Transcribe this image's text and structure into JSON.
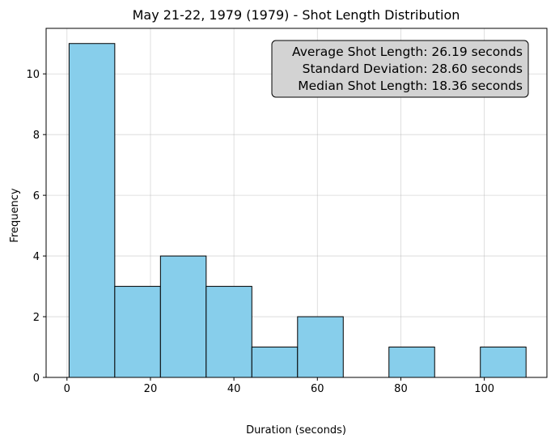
{
  "chart_data": {
    "type": "bar",
    "title": "May 21-22, 1979 (1979) - Shot Length Distribution",
    "xlabel": "Duration (seconds)",
    "ylabel": "Frequency",
    "bins": [
      {
        "start": 0.5,
        "end": 11.45,
        "count": 11
      },
      {
        "start": 11.45,
        "end": 22.4,
        "count": 3
      },
      {
        "start": 22.4,
        "end": 33.35,
        "count": 4
      },
      {
        "start": 33.35,
        "end": 44.3,
        "count": 3
      },
      {
        "start": 44.3,
        "end": 55.25,
        "count": 1
      },
      {
        "start": 55.25,
        "end": 66.2,
        "count": 2
      },
      {
        "start": 66.2,
        "end": 77.15,
        "count": 0
      },
      {
        "start": 77.15,
        "end": 88.1,
        "count": 1
      },
      {
        "start": 88.1,
        "end": 99.05,
        "count": 0
      },
      {
        "start": 99.05,
        "end": 110.0,
        "count": 1
      }
    ],
    "xlim": [
      -5,
      115
    ],
    "ylim": [
      0,
      11.5
    ],
    "xticks": [
      0,
      20,
      40,
      60,
      80,
      100
    ],
    "yticks": [
      0,
      2,
      4,
      6,
      8,
      10
    ],
    "grid": true,
    "bar_color": "#87ceeb",
    "edge_color": "#000000",
    "stats_box": {
      "lines": [
        "Average Shot Length: 26.19 seconds",
        "Standard Deviation: 28.60 seconds",
        "Median Shot Length: 18.36 seconds"
      ],
      "placement": "top-right",
      "background": "#d3d3d3"
    }
  }
}
